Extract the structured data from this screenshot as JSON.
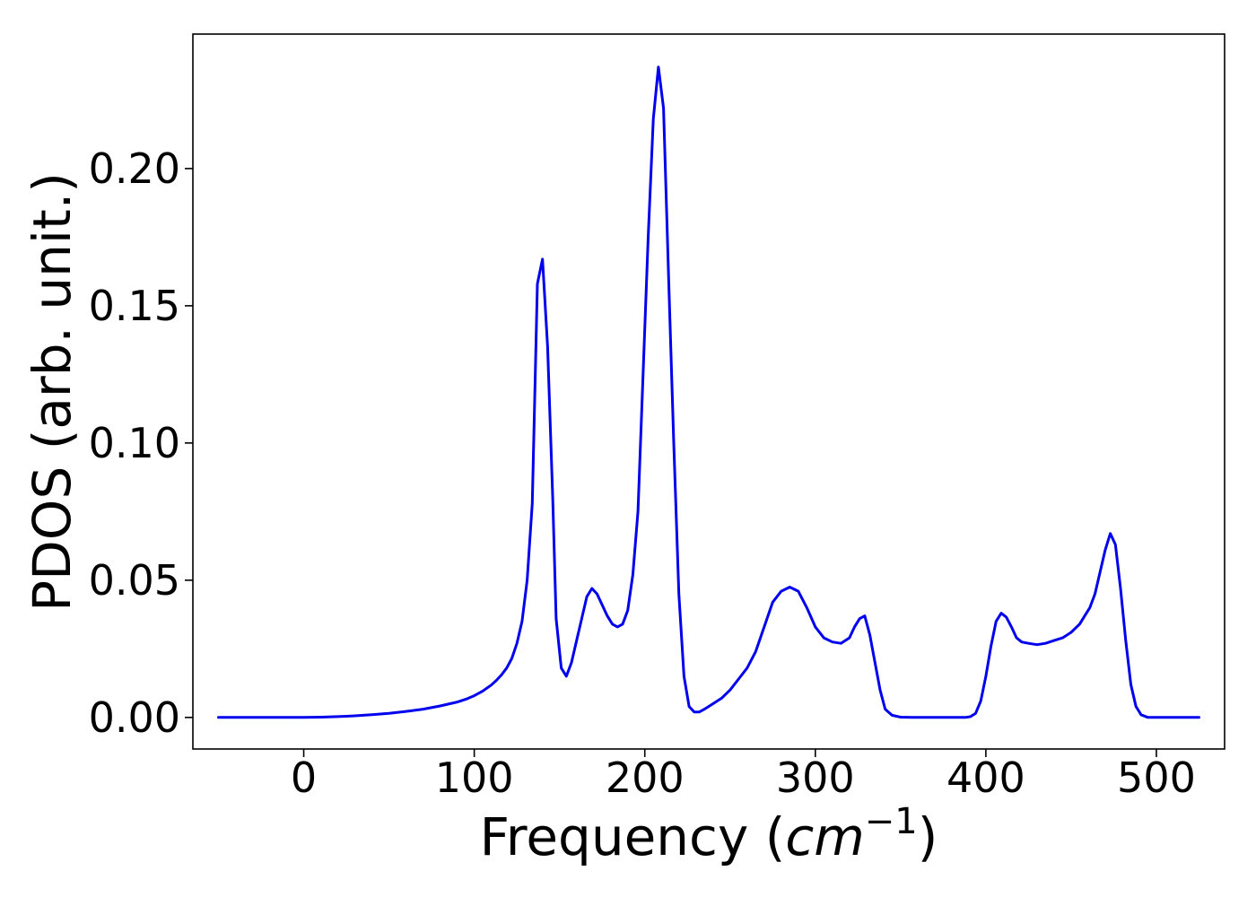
{
  "chart_data": {
    "type": "line",
    "title": "",
    "xlabel": {
      "text": "Frequency (",
      "math": "cm",
      "sup": "−1",
      "close": ")"
    },
    "ylabel": "PDOS (arb. unit.)",
    "xlim": [
      -65,
      540
    ],
    "ylim": [
      -0.0115,
      0.249
    ],
    "xticks": [
      0,
      100,
      200,
      300,
      400,
      500
    ],
    "xtick_labels": [
      "0",
      "100",
      "200",
      "300",
      "400",
      "500"
    ],
    "yticks": [
      0.0,
      0.05,
      0.1,
      0.15,
      0.2
    ],
    "ytick_labels": [
      "0.00",
      "0.05",
      "0.10",
      "0.15",
      "0.20"
    ],
    "grid": false,
    "legend": "none",
    "series": [
      {
        "color": "#0000ee",
        "x": [
          -50,
          0,
          10,
          20,
          30,
          40,
          50,
          60,
          70,
          80,
          90,
          95,
          100,
          105,
          110,
          113,
          116,
          119,
          122,
          125,
          128,
          131,
          134,
          137,
          140,
          143,
          146,
          148,
          151,
          154,
          157,
          160,
          163,
          166,
          169,
          172,
          175,
          178,
          181,
          184,
          187,
          190,
          193,
          196,
          199,
          202,
          205,
          208,
          211,
          214,
          217,
          220,
          223,
          226,
          229,
          232,
          235,
          240,
          245,
          250,
          255,
          260,
          265,
          270,
          275,
          280,
          285,
          290,
          295,
          300,
          305,
          310,
          315,
          320,
          323,
          326,
          329,
          332,
          335,
          338,
          341,
          345,
          350,
          360,
          370,
          380,
          388,
          391,
          394,
          397,
          400,
          403,
          406,
          409,
          412,
          415,
          418,
          421,
          425,
          430,
          435,
          440,
          445,
          450,
          455,
          458,
          461,
          464,
          467,
          470,
          473,
          476,
          479,
          482,
          485,
          488,
          491,
          495,
          500,
          510,
          525
        ],
        "y": [
          0.0,
          0.0,
          0.0001,
          0.0003,
          0.0006,
          0.001,
          0.0015,
          0.0022,
          0.003,
          0.0042,
          0.0056,
          0.0066,
          0.0079,
          0.0096,
          0.0118,
          0.0135,
          0.0155,
          0.018,
          0.0215,
          0.027,
          0.035,
          0.05,
          0.078,
          0.158,
          0.167,
          0.135,
          0.08,
          0.036,
          0.018,
          0.015,
          0.02,
          0.028,
          0.036,
          0.044,
          0.047,
          0.045,
          0.041,
          0.037,
          0.034,
          0.033,
          0.034,
          0.039,
          0.052,
          0.075,
          0.125,
          0.175,
          0.218,
          0.237,
          0.222,
          0.16,
          0.1,
          0.045,
          0.015,
          0.004,
          0.002,
          0.002,
          0.003,
          0.005,
          0.007,
          0.01,
          0.014,
          0.018,
          0.024,
          0.033,
          0.042,
          0.046,
          0.0475,
          0.046,
          0.04,
          0.033,
          0.029,
          0.0275,
          0.027,
          0.029,
          0.033,
          0.036,
          0.037,
          0.03,
          0.02,
          0.01,
          0.003,
          0.0008,
          0.0001,
          0.0,
          0.0,
          0.0,
          0.0,
          0.0003,
          0.0015,
          0.006,
          0.015,
          0.026,
          0.035,
          0.038,
          0.0365,
          0.033,
          0.029,
          0.0275,
          0.027,
          0.0265,
          0.027,
          0.028,
          0.029,
          0.031,
          0.034,
          0.037,
          0.04,
          0.045,
          0.053,
          0.061,
          0.067,
          0.063,
          0.047,
          0.028,
          0.012,
          0.004,
          0.001,
          0.0,
          0.0,
          0.0,
          0.0
        ]
      }
    ]
  }
}
